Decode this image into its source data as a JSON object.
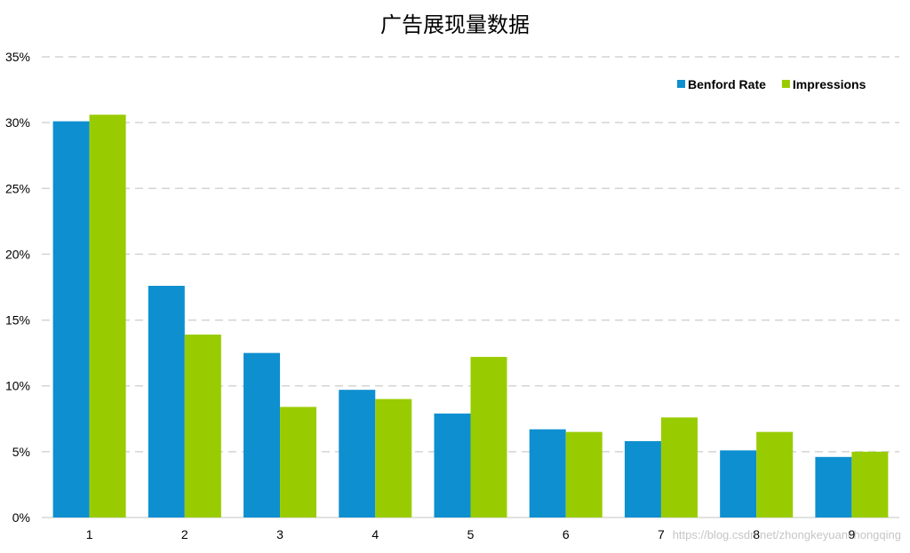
{
  "chart_data": {
    "type": "bar",
    "title": "广告展现量数据",
    "categories": [
      "1",
      "2",
      "3",
      "4",
      "5",
      "6",
      "7",
      "8",
      "9"
    ],
    "series": [
      {
        "name": "Benford Rate",
        "color": "#0e8fd0",
        "values": [
          30.1,
          17.6,
          12.5,
          9.7,
          7.9,
          6.7,
          5.8,
          5.1,
          4.6
        ]
      },
      {
        "name": "Impressions",
        "color": "#99cc00",
        "values": [
          30.6,
          13.9,
          8.4,
          9.0,
          12.2,
          6.5,
          7.6,
          6.5,
          5.0
        ]
      }
    ],
    "ylim": [
      0,
      35
    ],
    "yticks": [
      0,
      5,
      10,
      15,
      20,
      25,
      30,
      35
    ],
    "ytick_labels": [
      "0%",
      "5%",
      "10%",
      "15%",
      "20%",
      "25%",
      "30%",
      "35%"
    ],
    "grid": true,
    "legend": "top-right"
  },
  "watermark": "https://blog.csdn.net/zhongkeyuanchongqing"
}
